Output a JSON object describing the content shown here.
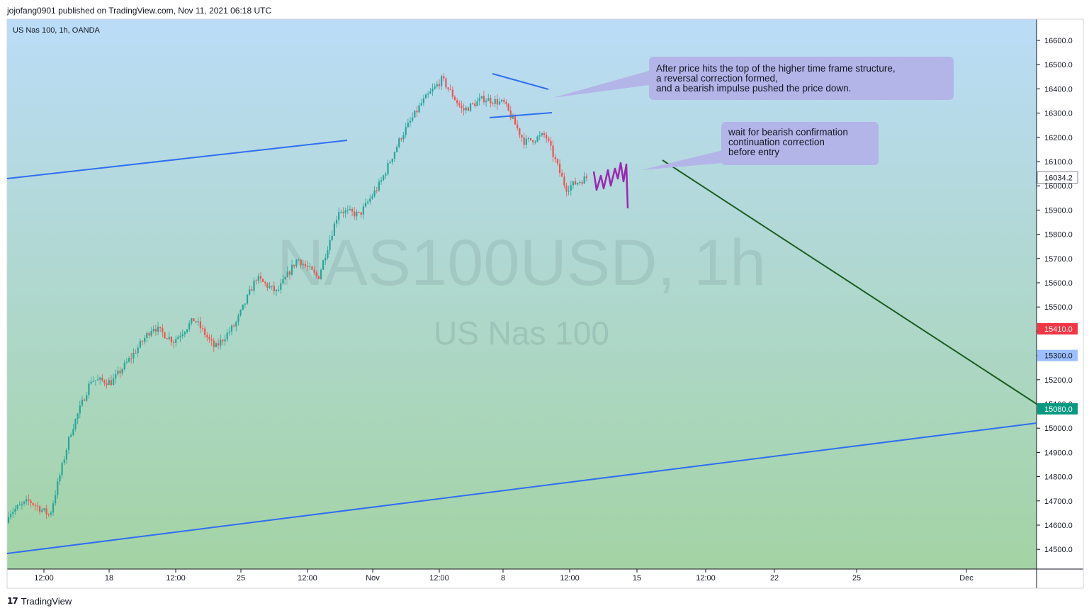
{
  "header": {
    "published": "jojofang0901 published on TradingView.com, Nov 11, 2021 06:18 UTC"
  },
  "footer": {
    "brand": "TradingView",
    "logo_icon": "tradingview-logo-icon"
  },
  "chart_data": {
    "type": "candlestick",
    "symbol_label": "US Nas 100, 1h, OANDA",
    "watermark": {
      "line1": "NAS100USD, 1h",
      "line2": "US Nas 100"
    },
    "y_axis": {
      "range": [
        14395,
        16695
      ],
      "ticks": [
        16600,
        16500,
        16400,
        16300,
        16200,
        16100,
        16000,
        15900,
        15800,
        15700,
        15600,
        15500,
        15400,
        15300,
        15200,
        15100,
        15000,
        14900,
        14800,
        14700,
        14600,
        14500
      ]
    },
    "x_axis": {
      "ticks": [
        "12:00",
        "18",
        "12:00",
        "25",
        "12:00",
        "Nov",
        "12:00",
        "8",
        "12:00",
        "15",
        "12:00",
        "22",
        "25",
        "Dec"
      ]
    },
    "price_labels": [
      {
        "text": "16034.2",
        "value": 16034.2,
        "style": "current"
      },
      {
        "text": "15410.0",
        "value": 15410.0,
        "style": "red"
      },
      {
        "text": "15300.0",
        "value": 15300.0,
        "style": "blue"
      },
      {
        "text": "15080.0",
        "value": 15080.0,
        "style": "green"
      }
    ],
    "anchors": [
      {
        "value": 14610,
        "close": 14650
      },
      {
        "value": 14790,
        "close": 14700
      },
      {
        "value": 14680,
        "close": 14640
      },
      {
        "value": 15010,
        "close": 14980
      },
      {
        "value": 15260,
        "close": 15200
      },
      {
        "value": 15220,
        "close": 15190
      },
      {
        "value": 15350,
        "close": 15300
      },
      {
        "value": 15440,
        "close": 15420
      },
      {
        "value": 15400,
        "close": 15360
      },
      {
        "value": 15480,
        "close": 15450
      },
      {
        "value": 15370,
        "close": 15330
      },
      {
        "value": 15460,
        "close": 15430
      },
      {
        "value": 15600,
        "close": 15620
      },
      {
        "value": 15600,
        "close": 15560
      },
      {
        "value": 15680,
        "close": 15700
      },
      {
        "value": 15640,
        "close": 15620
      },
      {
        "value": 15880,
        "close": 15900
      },
      {
        "value": 15860,
        "close": 15880
      },
      {
        "value": 16000,
        "close": 16010
      },
      {
        "value": 16180,
        "close": 16200
      },
      {
        "value": 16320,
        "close": 16340
      },
      {
        "value": 16400,
        "close": 16440
      },
      {
        "value": 16340,
        "close": 16310
      },
      {
        "value": 16380,
        "close": 16360
      },
      {
        "value": 16330,
        "close": 16340
      },
      {
        "value": 16200,
        "close": 16180
      },
      {
        "value": 16160,
        "close": 16210
      },
      {
        "value": 15960,
        "close": 15990
      },
      {
        "value": 16030,
        "close": 16034
      }
    ],
    "annotations": [
      {
        "lines": [
          "After price hits the top of the higher time frame structure,",
          "a reversal correction formed,",
          "and a bearish impulse pushed the price down."
        ]
      },
      {
        "lines": [
          "wait for bearish confirmation",
          "continuation correction",
          "before entry"
        ]
      }
    ],
    "colors": {
      "bg_top": "#bbdcf7",
      "bg_bottom": "#a3d3a4",
      "up": "#26a69a",
      "down": "#ef5350",
      "trendline": "#2f6ff0",
      "projection": "#1b5e20",
      "scribble": "#9c27b0",
      "callout": "#b3b5e8",
      "red_label": "#f23645",
      "blue_label": "#9cc0ff",
      "green_label": "#089981"
    }
  }
}
